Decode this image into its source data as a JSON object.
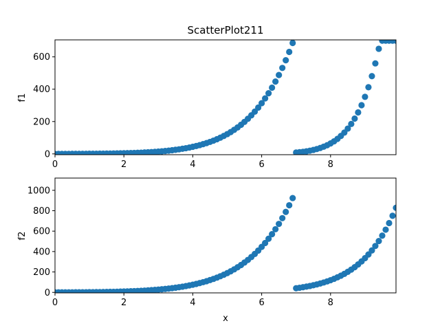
{
  "chart_data": [
    {
      "type": "scatter",
      "title": "ScatterPlot211",
      "xlabel": "",
      "ylabel": "f1",
      "xlim": [
        0,
        9.9
      ],
      "ylim": [
        -5,
        705
      ],
      "xticks": [
        0,
        2,
        4,
        6,
        8
      ],
      "yticks": [
        0,
        200,
        400,
        600
      ],
      "grid": false,
      "color": "#1f77b4",
      "series": [
        {
          "x": [
            0.0,
            0.1,
            0.2,
            0.3,
            0.4,
            0.5,
            0.6,
            0.7,
            0.8,
            0.9,
            1.0,
            1.1,
            1.2,
            1.3,
            1.4,
            1.5,
            1.6,
            1.7,
            1.8,
            1.9,
            2.0,
            2.1,
            2.2,
            2.3,
            2.4,
            2.5,
            2.6,
            2.7,
            2.8,
            2.9,
            3.0,
            3.1,
            3.2,
            3.3,
            3.4,
            3.5,
            3.6,
            3.7,
            3.8,
            3.9,
            4.0,
            4.1,
            4.2,
            4.3,
            4.4,
            4.5,
            4.6,
            4.7,
            4.8,
            4.9,
            5.0,
            5.1,
            5.2,
            5.3,
            5.4,
            5.5,
            5.6,
            5.7,
            5.8,
            5.9,
            6.0,
            6.1,
            6.2,
            6.3,
            6.4,
            6.5,
            6.6,
            6.7,
            6.8,
            6.9,
            7.0,
            7.1,
            7.2,
            7.3,
            7.4,
            7.5,
            7.6,
            7.7,
            7.8,
            7.9,
            8.0,
            8.1,
            8.2,
            8.3,
            8.4,
            8.5,
            8.6,
            8.7,
            8.8,
            8.9,
            9.0,
            9.1,
            9.2,
            9.3,
            9.4,
            9.5,
            9.6,
            9.7,
            9.8,
            9.9
          ],
          "y": [
            0.0,
            0.0,
            0.1,
            0.1,
            0.1,
            0.2,
            0.3,
            0.4,
            0.5,
            0.6,
            0.7,
            0.9,
            1.1,
            1.3,
            1.5,
            1.8,
            2.1,
            2.5,
            2.9,
            3.4,
            3.9,
            4.5,
            5.1,
            5.9,
            6.7,
            7.6,
            8.7,
            9.8,
            11.1,
            12.5,
            14.1,
            15.9,
            17.9,
            20.1,
            22.5,
            25.2,
            28.2,
            31.5,
            35.2,
            39.3,
            43.8,
            48.7,
            54.2,
            60.2,
            66.8,
            74.0,
            82.0,
            90.7,
            100.3,
            110.8,
            122.3,
            134.9,
            148.6,
            163.6,
            180.0,
            197.8,
            217.2,
            238.4,
            261.4,
            286.4,
            313.5,
            343.0,
            375.0,
            409.6,
            447.1,
            487.7,
            531.6,
            579.1,
            630.5,
            686.0,
            8.2,
            10.3,
            12.9,
            16.0,
            19.8,
            24.4,
            29.9,
            36.5,
            44.3,
            53.6,
            64.6,
            77.6,
            92.9,
            110.8,
            131.8,
            156.3,
            184.9,
            218.1,
            256.6,
            301.2,
            352.8,
            412.3,
            480.8,
            559.6,
            650.0,
            700.0,
            700.0,
            700.0,
            700.0,
            700.0
          ]
        }
      ]
    },
    {
      "type": "scatter",
      "title": "",
      "xlabel": "x",
      "ylabel": "f2",
      "xlim": [
        0,
        9.9
      ],
      "ylim": [
        -5,
        1120
      ],
      "xticks": [
        0,
        2,
        4,
        6,
        8
      ],
      "yticks": [
        0,
        200,
        400,
        600,
        800,
        1000
      ],
      "grid": false,
      "color": "#1f77b4",
      "series": [
        {
          "x": [
            0.0,
            0.1,
            0.2,
            0.3,
            0.4,
            0.5,
            0.6,
            0.7,
            0.8,
            0.9,
            1.0,
            1.1,
            1.2,
            1.3,
            1.4,
            1.5,
            1.6,
            1.7,
            1.8,
            1.9,
            2.0,
            2.1,
            2.2,
            2.3,
            2.4,
            2.5,
            2.6,
            2.7,
            2.8,
            2.9,
            3.0,
            3.1,
            3.2,
            3.3,
            3.4,
            3.5,
            3.6,
            3.7,
            3.8,
            3.9,
            4.0,
            4.1,
            4.2,
            4.3,
            4.4,
            4.5,
            4.6,
            4.7,
            4.8,
            4.9,
            5.0,
            5.1,
            5.2,
            5.3,
            5.4,
            5.5,
            5.6,
            5.7,
            5.8,
            5.9,
            6.0,
            6.1,
            6.2,
            6.3,
            6.4,
            6.5,
            6.6,
            6.7,
            6.8,
            6.9,
            7.0,
            7.1,
            7.2,
            7.3,
            7.4,
            7.5,
            7.6,
            7.7,
            7.8,
            7.9,
            8.0,
            8.1,
            8.2,
            8.3,
            8.4,
            8.5,
            8.6,
            8.7,
            8.8,
            8.9,
            9.0,
            9.1,
            9.2,
            9.3,
            9.4,
            9.5,
            9.6,
            9.7,
            9.8,
            9.9
          ],
          "y": [
            0.0,
            0.1,
            0.2,
            0.3,
            0.4,
            0.6,
            0.8,
            1.0,
            1.2,
            1.5,
            1.8,
            2.2,
            2.6,
            3.1,
            3.6,
            4.2,
            4.9,
            5.6,
            6.5,
            7.4,
            8.4,
            9.6,
            10.8,
            12.2,
            13.8,
            15.5,
            17.4,
            19.5,
            21.8,
            24.4,
            27.2,
            30.2,
            33.6,
            37.3,
            41.4,
            45.8,
            50.7,
            56.0,
            61.8,
            68.2,
            75.1,
            82.7,
            90.9,
            99.9,
            109.7,
            120.3,
            131.8,
            144.4,
            158.0,
            172.8,
            188.9,
            206.3,
            225.2,
            245.7,
            267.9,
            292.0,
            318.0,
            346.2,
            376.7,
            409.7,
            445.3,
            483.7,
            525.3,
            570.2,
            618.6,
            670.9,
            727.3,
            788.1,
            853.6,
            924.2,
            40.5,
            45.2,
            50.5,
            56.3,
            62.8,
            70.0,
            77.9,
            86.8,
            96.5,
            107.4,
            119.3,
            132.6,
            147.2,
            163.4,
            181.3,
            201.1,
            222.9,
            247.0,
            273.6,
            303.0,
            335.5,
            371.3,
            410.9,
            454.5,
            502.7,
            555.8,
            614.4,
            679.0,
            750.2,
            828.7
          ]
        }
      ]
    }
  ]
}
